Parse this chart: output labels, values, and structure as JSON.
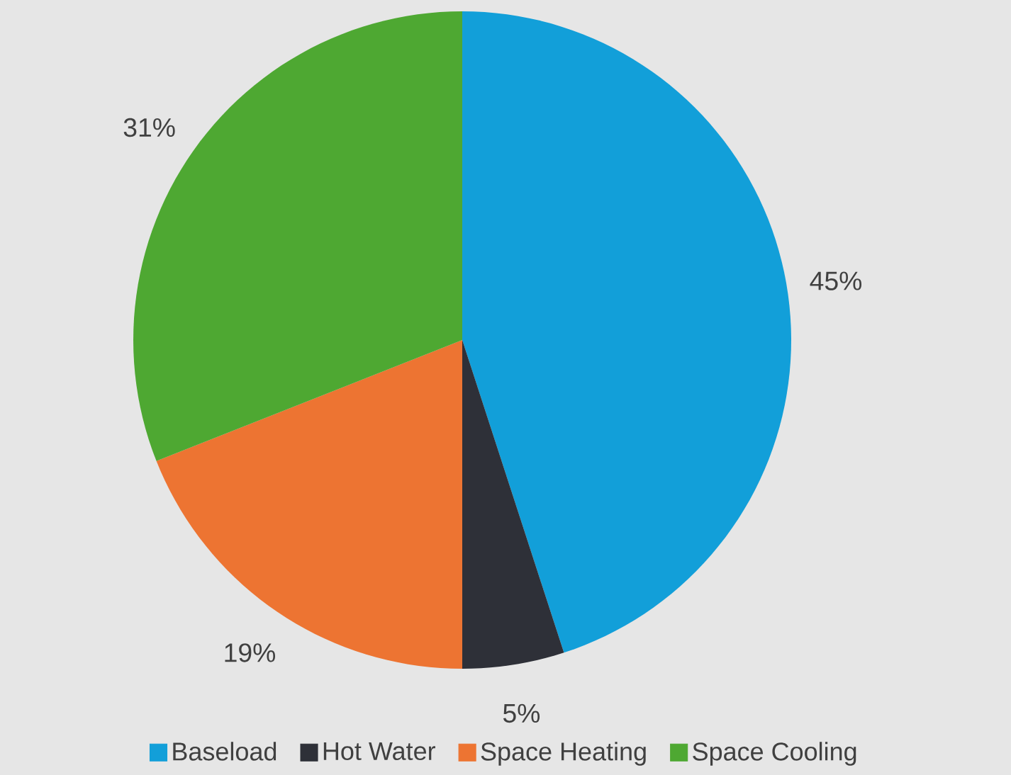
{
  "chart_data": {
    "type": "pie",
    "categories": [
      "Baseload",
      "Hot Water",
      "Space Heating",
      "Space Cooling"
    ],
    "values": [
      45,
      5,
      19,
      31
    ],
    "value_labels": [
      "45%",
      "5%",
      "19%",
      "31%"
    ],
    "colors": [
      "#129fd9",
      "#2e3038",
      "#ed7432",
      "#4ea832"
    ],
    "legend": "bottom"
  }
}
